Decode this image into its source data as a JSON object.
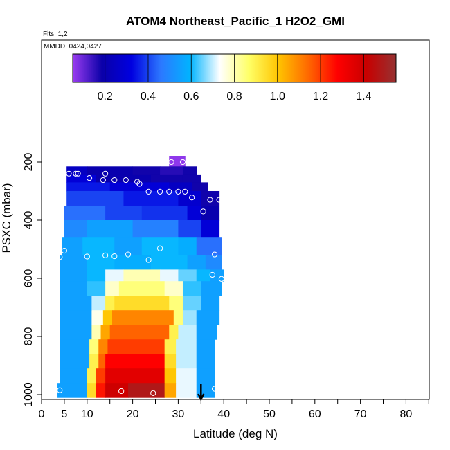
{
  "chart_data": {
    "type": "heatmap",
    "title": "ATOM4 Northeast_Pacific_1 H2O2_GMI",
    "flights_label": "Flts: 1,2",
    "dates_label": "MMDD: 0424,0427",
    "xlabel": "Latitude (deg N)",
    "ylabel": "PSXC (mbar)",
    "xlim": [
      0,
      85
    ],
    "ylim": [
      1010,
      0
    ],
    "x_ticks": [
      0,
      5,
      10,
      20,
      30,
      40,
      50,
      60,
      70,
      80
    ],
    "y_ticks": [
      200,
      400,
      600,
      800,
      1000
    ],
    "colorbar": {
      "range": [
        0.05,
        1.55
      ],
      "ticks": [
        0.2,
        0.4,
        0.6,
        0.8,
        1.0,
        1.2,
        1.4
      ],
      "tick_labels": [
        "0.2",
        "0.4",
        "0.6",
        "0.8",
        "1.0",
        "1.2",
        "1.4"
      ],
      "colors": [
        "#9a3cf0",
        "#0a00a8",
        "#0000e0",
        "#2c78ff",
        "#00b4ff",
        "#ffffff",
        "#ffff66",
        "#ffc400",
        "#ff6a00",
        "#ff0000",
        "#c80000",
        "#963232"
      ]
    },
    "layers": [
      {
        "p": [
          180,
          215
        ],
        "segments": [
          [
            28,
            31.5,
            0.06
          ]
        ]
      },
      {
        "p": [
          215,
          245
        ],
        "segments": [
          [
            5.5,
            10,
            0.25
          ],
          [
            10,
            20,
            0.2
          ],
          [
            20,
            26,
            0.18
          ],
          [
            26,
            31,
            0.16
          ],
          [
            31,
            34,
            0.18
          ]
        ]
      },
      {
        "p": [
          245,
          270
        ],
        "segments": [
          [
            5.5,
            12,
            0.3
          ],
          [
            12,
            24,
            0.2
          ],
          [
            24,
            31,
            0.18
          ],
          [
            31,
            35,
            0.18
          ]
        ]
      },
      {
        "p": [
          270,
          300
        ],
        "segments": [
          [
            5.5,
            15,
            0.35
          ],
          [
            15,
            28,
            0.3
          ],
          [
            28,
            33,
            0.25
          ],
          [
            33,
            36.5,
            0.18
          ]
        ]
      },
      {
        "p": [
          300,
          350
        ],
        "segments": [
          [
            5.5,
            18,
            0.4
          ],
          [
            18,
            30,
            0.35
          ],
          [
            30,
            35,
            0.28
          ],
          [
            35,
            39,
            0.18
          ]
        ]
      },
      {
        "p": [
          350,
          400
        ],
        "segments": [
          [
            5,
            14,
            0.45
          ],
          [
            14,
            22,
            0.4
          ],
          [
            22,
            32,
            0.38
          ],
          [
            32,
            35,
            0.3
          ],
          [
            35,
            39,
            0.2
          ]
        ]
      },
      {
        "p": [
          400,
          460
        ],
        "segments": [
          [
            5,
            10,
            0.5
          ],
          [
            10,
            20,
            0.55
          ],
          [
            20,
            30,
            0.48
          ],
          [
            30,
            35,
            0.4
          ],
          [
            35,
            39,
            0.3
          ]
        ]
      },
      {
        "p": [
          460,
          520
        ],
        "segments": [
          [
            4.5,
            9,
            0.55
          ],
          [
            9,
            16,
            0.6
          ],
          [
            16,
            22,
            0.55
          ],
          [
            22,
            30,
            0.6
          ],
          [
            30,
            34,
            0.58
          ],
          [
            34,
            39.5,
            0.45
          ]
        ]
      },
      {
        "p": [
          520,
          570
        ],
        "segments": [
          [
            4,
            10,
            0.55
          ],
          [
            10,
            16,
            0.6
          ],
          [
            16,
            24,
            0.58
          ],
          [
            24,
            32,
            0.6
          ],
          [
            32,
            36,
            0.55
          ],
          [
            36,
            39.5,
            0.5
          ]
        ]
      },
      {
        "p": [
          570,
          610
        ],
        "segments": [
          [
            4,
            10,
            0.55
          ],
          [
            10,
            14,
            0.6
          ],
          [
            14,
            18,
            0.72
          ],
          [
            18,
            26,
            0.8
          ],
          [
            26,
            30,
            0.72
          ],
          [
            30,
            34,
            0.65
          ],
          [
            34,
            37,
            0.6
          ],
          [
            37,
            40,
            0.55
          ]
        ]
      },
      {
        "p": [
          610,
          660
        ],
        "segments": [
          [
            4,
            10,
            0.55
          ],
          [
            10,
            14,
            0.62
          ],
          [
            14,
            17,
            0.78
          ],
          [
            17,
            27,
            0.85
          ],
          [
            27,
            31,
            0.78
          ],
          [
            31,
            35,
            0.62
          ],
          [
            35,
            39.5,
            0.55
          ]
        ]
      },
      {
        "p": [
          660,
          710
        ],
        "segments": [
          [
            4,
            11,
            0.55
          ],
          [
            11,
            14,
            0.7
          ],
          [
            14,
            16,
            0.9
          ],
          [
            16,
            28,
            0.95
          ],
          [
            28,
            31,
            0.85
          ],
          [
            31,
            35,
            0.65
          ],
          [
            35,
            39,
            0.55
          ]
        ]
      },
      {
        "p": [
          710,
          760
        ],
        "segments": [
          [
            4,
            11,
            0.55
          ],
          [
            11,
            13.5,
            0.75
          ],
          [
            13.5,
            15.5,
            1.0
          ],
          [
            15.5,
            29,
            1.1
          ],
          [
            29,
            31,
            0.85
          ],
          [
            31,
            34,
            0.68
          ],
          [
            34,
            39,
            0.55
          ]
        ]
      },
      {
        "p": [
          760,
          810
        ],
        "segments": [
          [
            4,
            11,
            0.55
          ],
          [
            11,
            13,
            0.8
          ],
          [
            13,
            15,
            1.05
          ],
          [
            15,
            28,
            1.15
          ],
          [
            28,
            30,
            0.9
          ],
          [
            30,
            34,
            0.7
          ],
          [
            34,
            38.5,
            0.55
          ]
        ]
      },
      {
        "p": [
          810,
          860
        ],
        "segments": [
          [
            4,
            10.5,
            0.55
          ],
          [
            10.5,
            12.5,
            0.85
          ],
          [
            12.5,
            14.5,
            1.1
          ],
          [
            14.5,
            27,
            1.2
          ],
          [
            27,
            29.5,
            0.9
          ],
          [
            29.5,
            34,
            0.7
          ],
          [
            34,
            38,
            0.55
          ]
        ]
      },
      {
        "p": [
          860,
          910
        ],
        "segments": [
          [
            4,
            10.5,
            0.55
          ],
          [
            10.5,
            12.5,
            0.9
          ],
          [
            12.5,
            14,
            1.15
          ],
          [
            14,
            27,
            1.28
          ],
          [
            27,
            29.5,
            0.95
          ],
          [
            29.5,
            34,
            0.7
          ],
          [
            34,
            38,
            0.55
          ]
        ]
      },
      {
        "p": [
          910,
          960
        ],
        "segments": [
          [
            4,
            10,
            0.55
          ],
          [
            10,
            12,
            0.9
          ],
          [
            12,
            14,
            1.2
          ],
          [
            14,
            27,
            1.35
          ],
          [
            27,
            29.5,
            1.0
          ],
          [
            29.5,
            34,
            0.72
          ],
          [
            34,
            38,
            0.55
          ]
        ]
      },
      {
        "p": [
          960,
          1010
        ],
        "segments": [
          [
            3.5,
            10,
            0.55
          ],
          [
            10,
            12,
            0.95
          ],
          [
            12,
            14,
            1.25
          ],
          [
            14,
            19,
            1.4
          ],
          [
            19,
            27,
            1.48
          ],
          [
            27,
            29.5,
            1.05
          ],
          [
            29.5,
            34,
            0.72
          ],
          [
            34,
            38,
            0.55
          ]
        ]
      }
    ],
    "observations": [
      [
        28.5,
        200
      ],
      [
        31,
        200
      ],
      [
        6,
        240
      ],
      [
        7.5,
        240
      ],
      [
        8,
        240
      ],
      [
        14,
        240
      ],
      [
        10.5,
        255
      ],
      [
        13.5,
        262
      ],
      [
        16,
        262
      ],
      [
        18.5,
        262
      ],
      [
        21,
        268
      ],
      [
        21.5,
        275
      ],
      [
        23.5,
        302
      ],
      [
        26,
        302
      ],
      [
        28,
        302
      ],
      [
        30,
        302
      ],
      [
        31.5,
        302
      ],
      [
        33,
        322
      ],
      [
        37,
        330
      ],
      [
        39,
        330
      ],
      [
        35.5,
        370
      ],
      [
        5,
        505
      ],
      [
        26,
        497
      ],
      [
        19,
        518
      ],
      [
        14,
        521
      ],
      [
        10,
        525
      ],
      [
        16,
        524
      ],
      [
        38,
        518
      ],
      [
        4,
        527
      ],
      [
        23.5,
        537
      ],
      [
        37.5,
        588
      ],
      [
        39.5,
        602
      ],
      [
        4,
        985
      ],
      [
        17.5,
        988
      ],
      [
        24.5,
        995
      ],
      [
        38,
        980
      ]
    ],
    "marker_latitude": 35
  }
}
